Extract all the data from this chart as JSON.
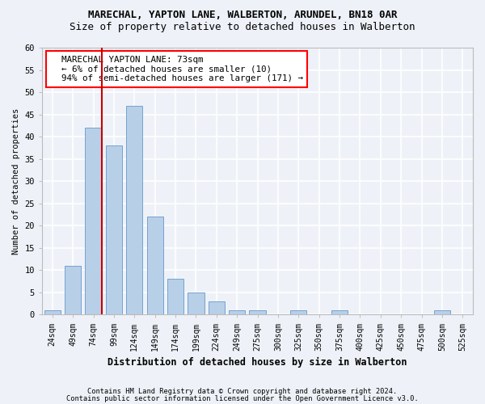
{
  "title1": "MARECHAL, YAPTON LANE, WALBERTON, ARUNDEL, BN18 0AR",
  "title2": "Size of property relative to detached houses in Walberton",
  "xlabel": "Distribution of detached houses by size in Walberton",
  "ylabel": "Number of detached properties",
  "bar_color": "#b8cfe8",
  "bar_edge_color": "#6699cc",
  "annotation_line_color": "#cc0000",
  "categories": [
    "24sqm",
    "49sqm",
    "74sqm",
    "99sqm",
    "124sqm",
    "149sqm",
    "174sqm",
    "199sqm",
    "224sqm",
    "249sqm",
    "275sqm",
    "300sqm",
    "325sqm",
    "350sqm",
    "375sqm",
    "400sqm",
    "425sqm",
    "450sqm",
    "475sqm",
    "500sqm",
    "525sqm"
  ],
  "values": [
    1,
    11,
    42,
    38,
    47,
    22,
    8,
    5,
    3,
    1,
    1,
    0,
    1,
    0,
    1,
    0,
    0,
    0,
    0,
    1,
    0
  ],
  "annotation_text": "  MARECHAL YAPTON LANE: 73sqm\n  ← 6% of detached houses are smaller (10)\n  94% of semi-detached houses are larger (171) →",
  "vline_x_index": 2,
  "ylim": [
    0,
    60
  ],
  "yticks": [
    0,
    5,
    10,
    15,
    20,
    25,
    30,
    35,
    40,
    45,
    50,
    55,
    60
  ],
  "footer1": "Contains HM Land Registry data © Crown copyright and database right 2024.",
  "footer2": "Contains public sector information licensed under the Open Government Licence v3.0.",
  "bg_color": "#eef2f8",
  "plot_bg_color": "#eef2f8",
  "title1_fontsize": 9,
  "title2_fontsize": 9
}
